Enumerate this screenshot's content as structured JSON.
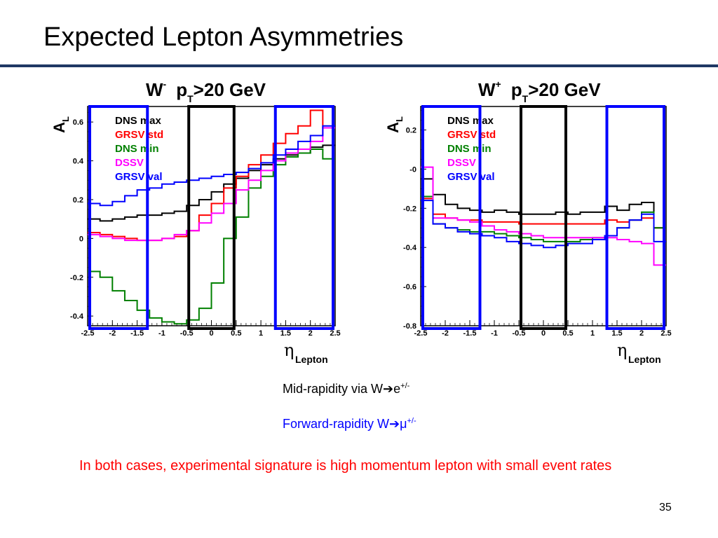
{
  "slide": {
    "title": "Expected Lepton Asymmetries",
    "page_number": "35",
    "notes": {
      "mid_prefix": "Mid-rapidity via W",
      "mid_arrow": "➔",
      "mid_particle": "e",
      "mid_charge": "+/-",
      "fwd_prefix": "Forward-rapidity W",
      "fwd_arrow": "➔",
      "fwd_particle": "μ",
      "fwd_charge": "+/-",
      "conclusion": "In both cases, experimental signature is high momentum lepton with small event rates"
    },
    "colors": {
      "title_rule": "#1f3864",
      "conclusion": "#ff0000",
      "forward_note": "#0000ff"
    }
  },
  "chart_data": [
    {
      "type": "line",
      "title_w": "W",
      "title_charge": "-",
      "title_cut": "p",
      "title_cut_sub": "T",
      "title_cut_value": ">20 GeV",
      "ylabel": "A",
      "ylabel_sub": "L",
      "xlabel": "η",
      "xlabel_sub": "Lepton",
      "xlim": [
        -2.5,
        2.5
      ],
      "ylim": [
        -0.45,
        0.68
      ],
      "xticks": [
        "-2.5",
        "-2",
        "-1.5",
        "-1",
        "-0.5",
        "0",
        "0.5",
        "1",
        "1.5",
        "2",
        "2.5"
      ],
      "yticks": [
        "-0.4",
        "-0.2",
        "0",
        "0.2",
        "0.4",
        "0.6"
      ],
      "legend_position": "top-left",
      "bin_edges": [
        -2.5,
        -2.25,
        -2.0,
        -1.75,
        -1.5,
        -1.25,
        -1.0,
        -0.75,
        -0.5,
        -0.25,
        0.0,
        0.25,
        0.5,
        0.75,
        1.0,
        1.25,
        1.5,
        1.75,
        2.0,
        2.25,
        2.5
      ],
      "series": [
        {
          "name": "DNS max",
          "color": "#000000",
          "values": [
            0.1,
            0.09,
            0.1,
            0.11,
            0.12,
            0.12,
            0.13,
            0.14,
            0.17,
            0.2,
            0.24,
            0.28,
            0.31,
            0.35,
            0.38,
            0.41,
            0.43,
            0.44,
            0.47,
            0.48
          ]
        },
        {
          "name": "GRSV std",
          "color": "#ff0000",
          "values": [
            0.03,
            0.02,
            0.01,
            0.0,
            -0.01,
            -0.01,
            0.0,
            0.01,
            0.04,
            0.12,
            0.18,
            0.26,
            0.32,
            0.38,
            0.43,
            0.49,
            0.54,
            0.58,
            0.66,
            0.57
          ]
        },
        {
          "name": "DNS min",
          "color": "#008000",
          "values": [
            -0.17,
            -0.2,
            -0.27,
            -0.32,
            -0.37,
            -0.41,
            -0.43,
            -0.44,
            -0.42,
            -0.36,
            -0.23,
            0.0,
            0.11,
            0.26,
            0.32,
            0.38,
            0.42,
            0.44,
            0.46,
            0.41
          ]
        },
        {
          "name": "DSSV",
          "color": "#ff00ff",
          "values": [
            0.02,
            0.01,
            0.0,
            -0.01,
            -0.01,
            -0.01,
            0.0,
            0.02,
            0.04,
            0.08,
            0.13,
            0.18,
            0.25,
            0.3,
            0.35,
            0.4,
            0.44,
            0.46,
            0.5,
            0.57
          ]
        },
        {
          "name": "GRSV val",
          "color": "#0000ff",
          "values": [
            0.18,
            0.17,
            0.19,
            0.22,
            0.25,
            0.26,
            0.28,
            0.29,
            0.3,
            0.31,
            0.32,
            0.33,
            0.34,
            0.36,
            0.39,
            0.43,
            0.46,
            0.5,
            0.53,
            0.58
          ]
        }
      ],
      "regions": [
        {
          "range": [
            -2.5,
            -1.25
          ],
          "color": "#0000ff"
        },
        {
          "range": [
            -0.5,
            0.5
          ],
          "color": "#000000"
        },
        {
          "range": [
            1.25,
            2.5
          ],
          "color": "#0000ff"
        }
      ]
    },
    {
      "type": "line",
      "title_w": "W",
      "title_charge": "+",
      "title_cut": "p",
      "title_cut_sub": "T",
      "title_cut_value": ">20 GeV",
      "ylabel": "A",
      "ylabel_sub": "L",
      "xlabel": "η",
      "xlabel_sub": "Lepton",
      "xlim": [
        -2.5,
        2.5
      ],
      "ylim": [
        -0.8,
        0.32
      ],
      "xticks": [
        "-2.5",
        "-2",
        "-1.5",
        "-1",
        "-0.5",
        "0",
        "0.5",
        "1",
        "1.5",
        "2",
        "2.5"
      ],
      "yticks": [
        "-0.8",
        "-0.6",
        "-0.4",
        "-0.2",
        "-0",
        "0.2"
      ],
      "legend_position": "top-left",
      "bin_edges": [
        -2.5,
        -2.25,
        -2.0,
        -1.75,
        -1.5,
        -1.25,
        -1.0,
        -0.75,
        -0.5,
        -0.25,
        0.0,
        0.25,
        0.5,
        0.75,
        1.0,
        1.25,
        1.5,
        1.75,
        2.0,
        2.25,
        2.5
      ],
      "series": [
        {
          "name": "DNS max",
          "color": "#000000",
          "values": [
            -0.05,
            -0.13,
            -0.18,
            -0.2,
            -0.21,
            -0.22,
            -0.21,
            -0.22,
            -0.23,
            -0.23,
            -0.23,
            -0.22,
            -0.23,
            -0.22,
            -0.22,
            -0.19,
            -0.21,
            -0.18,
            -0.17,
            -0.3
          ]
        },
        {
          "name": "GRSV std",
          "color": "#ff0000",
          "values": [
            -0.15,
            -0.23,
            -0.25,
            -0.26,
            -0.26,
            -0.27,
            -0.27,
            -0.27,
            -0.28,
            -0.28,
            -0.28,
            -0.28,
            -0.28,
            -0.28,
            -0.28,
            -0.26,
            -0.27,
            -0.26,
            -0.25,
            -0.3
          ]
        },
        {
          "name": "DNS min",
          "color": "#008000",
          "values": [
            -0.14,
            -0.28,
            -0.3,
            -0.31,
            -0.32,
            -0.32,
            -0.33,
            -0.34,
            -0.35,
            -0.36,
            -0.37,
            -0.37,
            -0.37,
            -0.36,
            -0.35,
            -0.34,
            -0.3,
            -0.26,
            -0.22,
            -0.3
          ]
        },
        {
          "name": "DSSV",
          "color": "#ff00ff",
          "values": [
            0.01,
            -0.25,
            -0.25,
            -0.26,
            -0.27,
            -0.29,
            -0.31,
            -0.32,
            -0.33,
            -0.34,
            -0.35,
            -0.35,
            -0.35,
            -0.35,
            -0.35,
            -0.35,
            -0.36,
            -0.37,
            -0.38,
            -0.49
          ]
        },
        {
          "name": "GRSV val",
          "color": "#0000ff",
          "values": [
            -0.16,
            -0.28,
            -0.3,
            -0.32,
            -0.33,
            -0.34,
            -0.35,
            -0.37,
            -0.38,
            -0.39,
            -0.4,
            -0.39,
            -0.38,
            -0.38,
            -0.36,
            -0.34,
            -0.3,
            -0.26,
            -0.23,
            -0.37
          ]
        }
      ],
      "regions": [
        {
          "range": [
            -2.5,
            -1.25
          ],
          "color": "#0000ff"
        },
        {
          "range": [
            -0.5,
            0.5
          ],
          "color": "#000000"
        },
        {
          "range": [
            1.25,
            2.5
          ],
          "color": "#0000ff"
        }
      ]
    }
  ]
}
